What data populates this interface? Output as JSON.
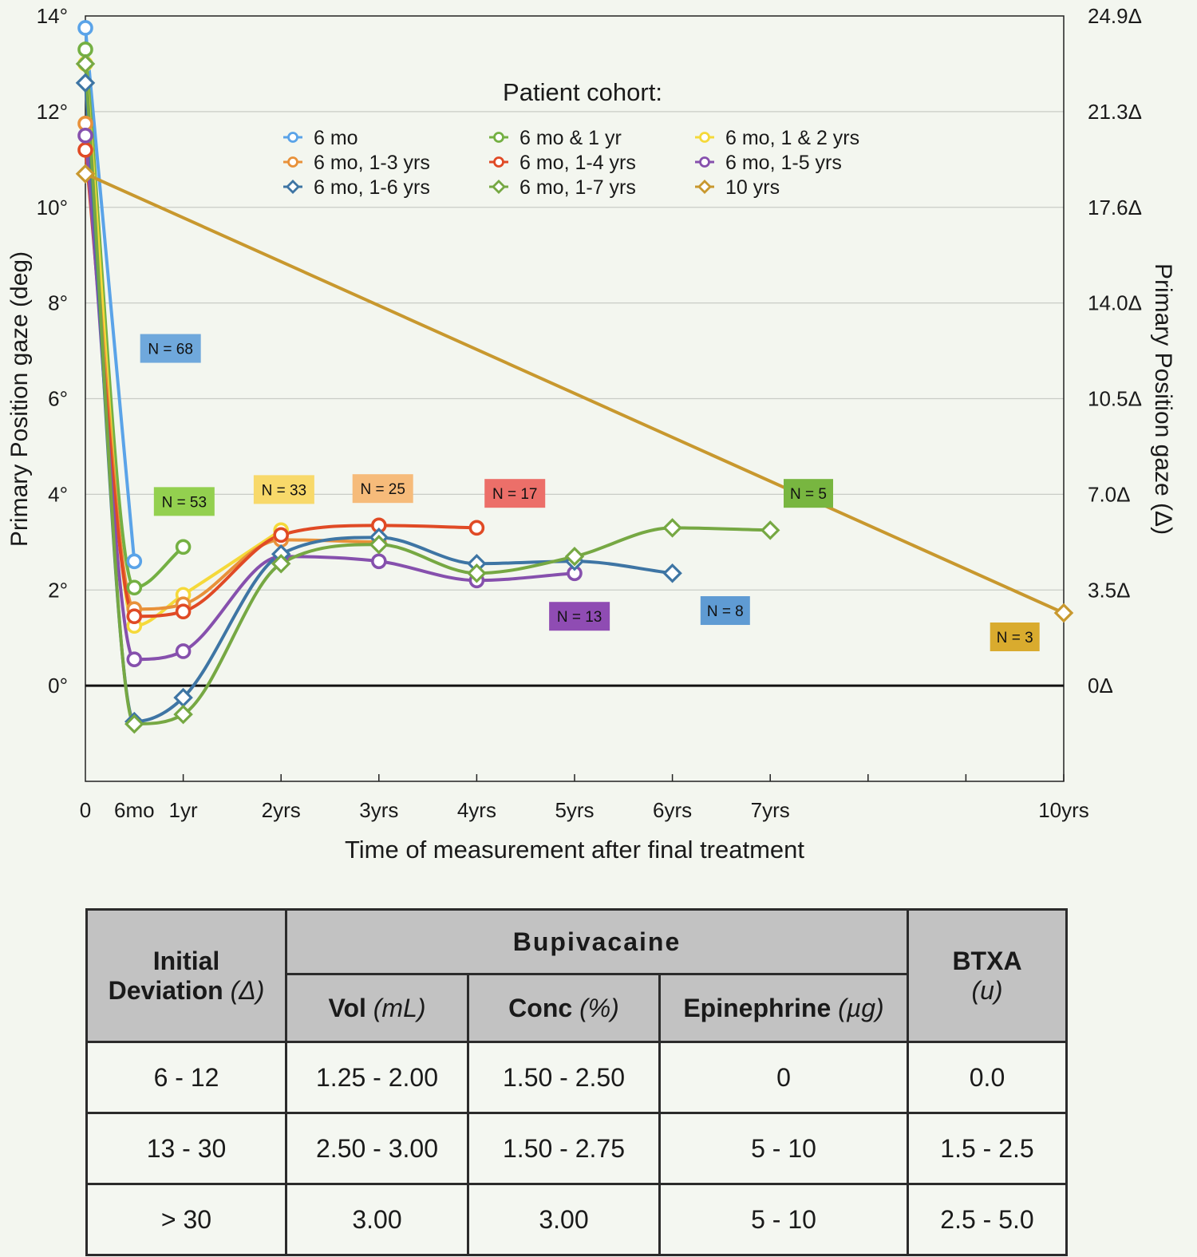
{
  "chart_data": {
    "type": "line",
    "xlabel": "Time of measurement after final treatment",
    "ylabel": "Primary Position gaze (deg)",
    "y2label": "Primary Position gaze (Δ)",
    "ylim": [
      -2,
      14
    ],
    "xlim": [
      0,
      10
    ],
    "x_ticks": [
      {
        "x": 0,
        "label": "0"
      },
      {
        "x": 0.5,
        "label": "6mo"
      },
      {
        "x": 1,
        "label": "1yr"
      },
      {
        "x": 2,
        "label": "2yrs"
      },
      {
        "x": 3,
        "label": "3yrs"
      },
      {
        "x": 4,
        "label": "4yrs"
      },
      {
        "x": 5,
        "label": "5yrs"
      },
      {
        "x": 6,
        "label": "6yrs"
      },
      {
        "x": 7,
        "label": "7yrs"
      },
      {
        "x": 10,
        "label": "10yrs"
      }
    ],
    "y_ticks": [
      {
        "y": 0,
        "label": "0°"
      },
      {
        "y": 2,
        "label": "2°"
      },
      {
        "y": 4,
        "label": "4°"
      },
      {
        "y": 6,
        "label": "6°"
      },
      {
        "y": 8,
        "label": "8°"
      },
      {
        "y": 10,
        "label": "10°"
      },
      {
        "y": 12,
        "label": "12°"
      },
      {
        "y": 14,
        "label": "14°"
      }
    ],
    "y2_ticks": [
      {
        "y": 0,
        "label": "0Δ"
      },
      {
        "y": 2,
        "label": "3.5Δ"
      },
      {
        "y": 4,
        "label": "7.0Δ"
      },
      {
        "y": 6,
        "label": "10.5Δ"
      },
      {
        "y": 8,
        "label": "14.0Δ"
      },
      {
        "y": 10,
        "label": "17.6Δ"
      },
      {
        "y": 12,
        "label": "21.3Δ"
      },
      {
        "y": 14,
        "label": "24.9Δ"
      }
    ],
    "legend_title": "Patient cohort:",
    "legend_position": "top-center",
    "grid": true,
    "series": [
      {
        "name": "6 mo",
        "color": "#5aa3e8",
        "marker": "circle",
        "x": [
          0,
          0.5
        ],
        "y": [
          13.75,
          2.6
        ]
      },
      {
        "name": "6 mo & 1 yr",
        "color": "#74b043",
        "marker": "circle",
        "x": [
          0,
          0.5,
          1
        ],
        "y": [
          13.3,
          2.05,
          2.9
        ]
      },
      {
        "name": "6 mo, 1 & 2 yrs",
        "color": "#f5d93a",
        "marker": "circle",
        "x": [
          0,
          0.5,
          1,
          2
        ],
        "y": [
          13.0,
          1.25,
          1.9,
          3.25
        ]
      },
      {
        "name": "6 mo, 1-3 yrs",
        "color": "#e8913a",
        "marker": "circle",
        "x": [
          0,
          0.5,
          1,
          2,
          3
        ],
        "y": [
          11.75,
          1.6,
          1.7,
          3.05,
          3.0
        ]
      },
      {
        "name": "6 mo, 1-4 yrs",
        "color": "#e04a25",
        "marker": "circle",
        "x": [
          0,
          0.5,
          1,
          2,
          3,
          4
        ],
        "y": [
          11.2,
          1.45,
          1.55,
          3.15,
          3.35,
          3.3
        ]
      },
      {
        "name": "6 mo, 1-5 yrs",
        "color": "#8650ad",
        "marker": "circle",
        "x": [
          0,
          0.5,
          1,
          2,
          3,
          4,
          5
        ],
        "y": [
          11.5,
          0.55,
          0.72,
          2.7,
          2.6,
          2.2,
          2.35
        ]
      },
      {
        "name": "6 mo, 1-6 yrs",
        "color": "#3e75a4",
        "marker": "diamond",
        "x": [
          0,
          0.5,
          1,
          2,
          3,
          4,
          5,
          6
        ],
        "y": [
          12.6,
          -0.75,
          -0.25,
          2.75,
          3.1,
          2.55,
          2.6,
          2.35
        ]
      },
      {
        "name": "6 mo, 1-7 yrs",
        "color": "#76a843",
        "marker": "diamond",
        "x": [
          0,
          0.5,
          1,
          2,
          3,
          4,
          5,
          6,
          7
        ],
        "y": [
          13.0,
          -0.8,
          -0.6,
          2.55,
          2.95,
          2.35,
          2.7,
          3.3,
          3.25
        ]
      },
      {
        "name": "10 yrs",
        "color": "#c8982e",
        "marker": "diamond",
        "x": [
          0,
          10
        ],
        "y": [
          10.7,
          1.52
        ]
      }
    ],
    "annotations": [
      {
        "text": "N = 68",
        "color": "#6fa8dc",
        "x": 0.87,
        "y": 7.05
      },
      {
        "text": "N = 53",
        "color": "#93d04f",
        "x": 1.01,
        "y": 3.85
      },
      {
        "text": "N = 33",
        "color": "#f8d96a",
        "x": 2.03,
        "y": 4.1
      },
      {
        "text": "N = 25",
        "color": "#f6bb7a",
        "x": 3.04,
        "y": 4.12
      },
      {
        "text": "N = 17",
        "color": "#ec6f69",
        "x": 4.39,
        "y": 4.02
      },
      {
        "text": "N = 5",
        "color": "#78b640",
        "x": 7.39,
        "y": 4.02
      },
      {
        "text": "N = 13",
        "color": "#8f4cb3",
        "x": 5.05,
        "y": 1.45
      },
      {
        "text": "N = 8",
        "color": "#5f9bd3",
        "x": 6.54,
        "y": 1.57
      },
      {
        "text": "N = 3",
        "color": "#d9ab2e",
        "x": 9.5,
        "y": 1.02
      }
    ]
  },
  "table": {
    "head": {
      "initial": "Initial",
      "deviation": "Deviation",
      "deviation_unit": "(Δ)",
      "bupivacaine": "Bupivacaine",
      "btxa": "BTXA",
      "btxa_unit": "(u)",
      "vol": "Vol",
      "vol_unit": "(mL)",
      "conc": "Conc",
      "conc_unit": "(%)",
      "epi": "Epinephrine",
      "epi_unit": "(µg)"
    },
    "rows": [
      [
        "6 - 12",
        "1.25 - 2.00",
        "1.50 - 2.50",
        "0",
        "0.0"
      ],
      [
        "13 - 30",
        "2.50 - 3.00",
        "1.50 - 2.75",
        "5 - 10",
        "1.5 - 2.5"
      ],
      [
        "> 30",
        "3.00",
        "3.00",
        "5 - 10",
        "2.5 - 5.0"
      ]
    ]
  }
}
